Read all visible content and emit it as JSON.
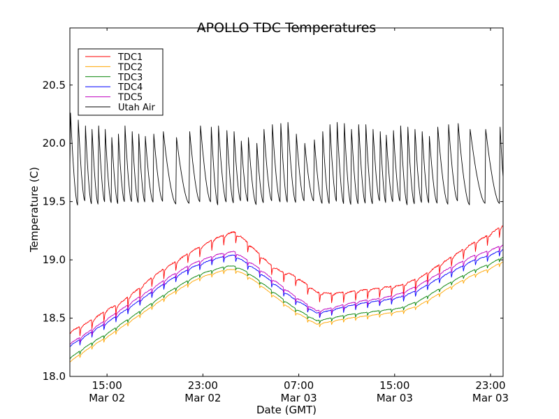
{
  "chart_data": {
    "type": "line",
    "title": "APOLLO TDC Temperatures",
    "xlabel": "Date (GMT)",
    "ylabel": "Temperature (C)",
    "x_units": "hours since Mar 02 00:00 GMT",
    "xlim": [
      11.9,
      48.05
    ],
    "ylim": [
      18.0,
      20.99
    ],
    "grid": false,
    "legend_position": "top-left",
    "yticks": [
      {
        "value": 18.0,
        "label": "18.0"
      },
      {
        "value": 18.5,
        "label": "18.5"
      },
      {
        "value": 19.0,
        "label": "19.0"
      },
      {
        "value": 19.5,
        "label": "19.5"
      },
      {
        "value": 20.0,
        "label": "20.0"
      },
      {
        "value": 20.5,
        "label": "20.5"
      }
    ],
    "xticks": [
      {
        "value": 15,
        "time": "15:00",
        "date": "Mar 02"
      },
      {
        "value": 23,
        "time": "23:00",
        "date": "Mar 02"
      },
      {
        "value": 31,
        "time": "07:00",
        "date": "Mar 03"
      },
      {
        "value": 39,
        "time": "15:00",
        "date": "Mar 03"
      },
      {
        "value": 47,
        "time": "23:00",
        "date": "Mar 03"
      }
    ],
    "series": [
      {
        "name": "TDC1",
        "color": "#ff0000",
        "ripple": 0.09,
        "points": [
          [
            11.9,
            18.36
          ],
          [
            13,
            18.42
          ],
          [
            14,
            18.48
          ],
          [
            15,
            18.55
          ],
          [
            16,
            18.6
          ],
          [
            17,
            18.68
          ],
          [
            18,
            18.76
          ],
          [
            19,
            18.85
          ],
          [
            20,
            18.92
          ],
          [
            21,
            18.98
          ],
          [
            22,
            19.05
          ],
          [
            23,
            19.1
          ],
          [
            24,
            19.16
          ],
          [
            25,
            19.2
          ],
          [
            25.6,
            19.22
          ],
          [
            26.5,
            19.15
          ],
          [
            27.5,
            19.05
          ],
          [
            28.5,
            18.95
          ],
          [
            29.5,
            18.88
          ],
          [
            30.5,
            18.85
          ],
          [
            31.5,
            18.78
          ],
          [
            32.5,
            18.7
          ],
          [
            33.5,
            18.69
          ],
          [
            35,
            18.7
          ],
          [
            36.5,
            18.72
          ],
          [
            38,
            18.74
          ],
          [
            39.5,
            18.76
          ],
          [
            41,
            18.82
          ],
          [
            42.5,
            18.92
          ],
          [
            44,
            19.02
          ],
          [
            45.5,
            19.12
          ],
          [
            47,
            19.2
          ],
          [
            48.05,
            19.28
          ]
        ]
      },
      {
        "name": "TDC2",
        "color": "#ffa500",
        "ripple": 0.03,
        "points": [
          [
            11.9,
            18.12
          ],
          [
            13,
            18.2
          ],
          [
            14,
            18.27
          ],
          [
            15,
            18.33
          ],
          [
            16,
            18.4
          ],
          [
            17,
            18.47
          ],
          [
            18,
            18.54
          ],
          [
            19,
            18.61
          ],
          [
            20,
            18.68
          ],
          [
            21,
            18.74
          ],
          [
            22,
            18.8
          ],
          [
            23,
            18.85
          ],
          [
            24,
            18.88
          ],
          [
            25,
            18.91
          ],
          [
            25.6,
            18.91
          ],
          [
            26.5,
            18.87
          ],
          [
            27.5,
            18.8
          ],
          [
            28.5,
            18.72
          ],
          [
            29.5,
            18.64
          ],
          [
            30.5,
            18.56
          ],
          [
            31.5,
            18.5
          ],
          [
            32.5,
            18.44
          ],
          [
            33.5,
            18.46
          ],
          [
            35,
            18.49
          ],
          [
            36.5,
            18.51
          ],
          [
            38,
            18.53
          ],
          [
            39.5,
            18.55
          ],
          [
            41,
            18.6
          ],
          [
            42.5,
            18.69
          ],
          [
            44,
            18.78
          ],
          [
            45.5,
            18.86
          ],
          [
            47,
            18.92
          ],
          [
            48.05,
            18.98
          ]
        ]
      },
      {
        "name": "TDC3",
        "color": "#008000",
        "ripple": 0.03,
        "points": [
          [
            11.9,
            18.15
          ],
          [
            13,
            18.23
          ],
          [
            14,
            18.3
          ],
          [
            15,
            18.36
          ],
          [
            16,
            18.43
          ],
          [
            17,
            18.5
          ],
          [
            18,
            18.57
          ],
          [
            19,
            18.64
          ],
          [
            20,
            18.71
          ],
          [
            21,
            18.77
          ],
          [
            22,
            18.83
          ],
          [
            23,
            18.88
          ],
          [
            24,
            18.91
          ],
          [
            25,
            18.94
          ],
          [
            25.6,
            18.94
          ],
          [
            26.5,
            18.9
          ],
          [
            27.5,
            18.83
          ],
          [
            28.5,
            18.75
          ],
          [
            29.5,
            18.67
          ],
          [
            30.5,
            18.59
          ],
          [
            31.5,
            18.53
          ],
          [
            32.5,
            18.47
          ],
          [
            33.5,
            18.49
          ],
          [
            35,
            18.52
          ],
          [
            36.5,
            18.54
          ],
          [
            38,
            18.56
          ],
          [
            39.5,
            18.58
          ],
          [
            41,
            18.64
          ],
          [
            42.5,
            18.73
          ],
          [
            44,
            18.82
          ],
          [
            45.5,
            18.9
          ],
          [
            47,
            18.96
          ],
          [
            48.05,
            19.02
          ]
        ]
      },
      {
        "name": "TDC4",
        "color": "#0000ff",
        "ripple": 0.05,
        "points": [
          [
            11.9,
            18.25
          ],
          [
            13,
            18.32
          ],
          [
            14,
            18.39
          ],
          [
            15,
            18.45
          ],
          [
            16,
            18.52
          ],
          [
            17,
            18.59
          ],
          [
            18,
            18.66
          ],
          [
            19,
            18.73
          ],
          [
            20,
            18.8
          ],
          [
            21,
            18.86
          ],
          [
            22,
            18.92
          ],
          [
            23,
            18.96
          ],
          [
            24,
            19.0
          ],
          [
            25,
            19.02
          ],
          [
            25.6,
            19.03
          ],
          [
            26.5,
            18.97
          ],
          [
            27.5,
            18.9
          ],
          [
            28.5,
            18.82
          ],
          [
            29.5,
            18.74
          ],
          [
            30.5,
            18.66
          ],
          [
            31.5,
            18.6
          ],
          [
            32.5,
            18.53
          ],
          [
            33.5,
            18.55
          ],
          [
            35,
            18.59
          ],
          [
            36.5,
            18.62
          ],
          [
            38,
            18.64
          ],
          [
            39.5,
            18.67
          ],
          [
            41,
            18.73
          ],
          [
            42.5,
            18.82
          ],
          [
            44,
            18.9
          ],
          [
            45.5,
            18.98
          ],
          [
            47,
            19.03
          ],
          [
            48.05,
            19.08
          ]
        ]
      },
      {
        "name": "TDC5",
        "color": "#bf00bf",
        "ripple": 0.05,
        "points": [
          [
            11.9,
            18.27
          ],
          [
            13,
            18.34
          ],
          [
            14,
            18.41
          ],
          [
            15,
            18.48
          ],
          [
            16,
            18.55
          ],
          [
            17,
            18.62
          ],
          [
            18,
            18.69
          ],
          [
            19,
            18.76
          ],
          [
            20,
            18.83
          ],
          [
            21,
            18.89
          ],
          [
            22,
            18.95
          ],
          [
            23,
            18.99
          ],
          [
            24,
            19.03
          ],
          [
            25,
            19.05
          ],
          [
            25.6,
            19.06
          ],
          [
            26.5,
            19.0
          ],
          [
            27.5,
            18.93
          ],
          [
            28.5,
            18.85
          ],
          [
            29.5,
            18.77
          ],
          [
            30.5,
            18.69
          ],
          [
            31.5,
            18.62
          ],
          [
            32.5,
            18.55
          ],
          [
            33.5,
            18.57
          ],
          [
            35,
            18.61
          ],
          [
            36.5,
            18.64
          ],
          [
            38,
            18.66
          ],
          [
            39.5,
            18.7
          ],
          [
            41,
            18.77
          ],
          [
            42.5,
            18.86
          ],
          [
            44,
            18.94
          ],
          [
            45.5,
            19.02
          ],
          [
            47,
            19.07
          ],
          [
            48.05,
            19.12
          ]
        ]
      },
      {
        "name": "Utah Air",
        "color": "#000000",
        "ripple": 0,
        "cycles_peak_times": [
          11.95,
          12.6,
          13.2,
          13.75,
          14.3,
          14.85,
          15.4,
          15.95,
          16.5,
          17.1,
          17.65,
          18.2,
          18.9,
          19.7,
          20.8,
          21.9,
          22.8,
          23.7,
          24.3,
          25.0,
          25.6,
          26.2,
          26.8,
          27.5,
          28.1,
          28.8,
          29.5,
          30.1,
          30.8,
          31.5,
          32.3,
          33.0,
          33.6,
          34.2,
          34.8,
          35.4,
          36.0,
          36.6,
          37.2,
          37.8,
          38.3,
          38.9,
          39.5,
          40.1,
          40.7,
          41.3,
          41.9,
          42.6,
          43.5,
          44.3,
          45.3,
          46.6,
          47.8
        ],
        "cycles_peak_values": [
          20.26,
          20.2,
          20.15,
          20.12,
          20.15,
          20.12,
          20.05,
          20.08,
          20.15,
          20.1,
          20.08,
          20.06,
          20.08,
          20.1,
          20.05,
          20.1,
          20.15,
          20.14,
          20.15,
          20.11,
          20.1,
          20.02,
          20.05,
          20.0,
          20.12,
          20.16,
          20.17,
          20.18,
          20.08,
          20.0,
          20.03,
          20.1,
          20.16,
          20.18,
          20.17,
          20.12,
          20.16,
          20.16,
          20.12,
          20.1,
          20.07,
          20.11,
          20.15,
          20.14,
          20.12,
          20.1,
          20.06,
          20.14,
          20.16,
          20.17,
          20.12,
          20.12,
          20.14
        ],
        "trough_value": 19.49
      }
    ]
  }
}
